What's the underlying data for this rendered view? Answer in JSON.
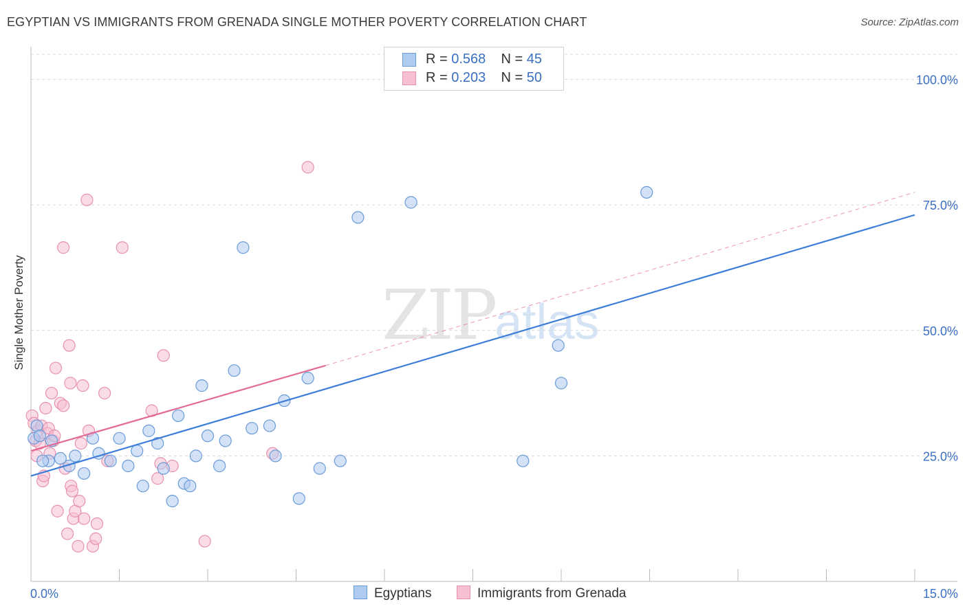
{
  "title": "EGYPTIAN VS IMMIGRANTS FROM GRENADA SINGLE MOTHER POVERTY CORRELATION CHART",
  "source": "Source: ZipAtlas.com",
  "watermark": {
    "zip": "ZIP",
    "atlas": "atlas"
  },
  "colors": {
    "blue": "#3b7dd8",
    "blue_fill": "#aecbf0",
    "blue_stroke": "#6a9bd8",
    "pink": "#e36a96",
    "pink_fill": "#f6bfd2",
    "pink_stroke": "#e890b0",
    "axis_text": "#3a6fc4",
    "grid": "#d9d9d9"
  },
  "legend": {
    "r_label": "R =",
    "n_label": "N =",
    "rows": [
      {
        "r": "0.568",
        "n": "45"
      },
      {
        "r": "0.203",
        "n": "50"
      }
    ]
  },
  "chart_data": {
    "type": "scatter",
    "title": "EGYPTIAN VS IMMIGRANTS FROM GRENADA SINGLE MOTHER POVERTY CORRELATION CHART",
    "xlabel": "",
    "ylabel": "Single Mother Poverty",
    "xlim": [
      0,
      15
    ],
    "ylim": [
      0,
      105
    ],
    "x_tick_labels": [
      "0.0%",
      "15.0%"
    ],
    "y_ticks": [
      25,
      50,
      75,
      100
    ],
    "y_tick_labels": [
      "25.0%",
      "50.0%",
      "75.0%",
      "100.0%"
    ],
    "grid": true,
    "series": [
      {
        "name": "Egyptians",
        "r": 0.568,
        "n": 45,
        "trend": {
          "x": [
            0,
            15
          ],
          "y": [
            21.0,
            73.0
          ],
          "style": "solid"
        },
        "points": [
          {
            "x": 0.05,
            "y": 28.5
          },
          {
            "x": 0.1,
            "y": 31.0
          },
          {
            "x": 0.15,
            "y": 29.0
          },
          {
            "x": 0.3,
            "y": 24.0
          },
          {
            "x": 0.35,
            "y": 28.0
          },
          {
            "x": 0.5,
            "y": 24.5
          },
          {
            "x": 0.65,
            "y": 23.0
          },
          {
            "x": 0.75,
            "y": 25.0
          },
          {
            "x": 0.9,
            "y": 21.5
          },
          {
            "x": 1.05,
            "y": 28.5
          },
          {
            "x": 1.15,
            "y": 25.5
          },
          {
            "x": 1.35,
            "y": 24.0
          },
          {
            "x": 1.5,
            "y": 28.5
          },
          {
            "x": 1.65,
            "y": 23.0
          },
          {
            "x": 1.8,
            "y": 26.0
          },
          {
            "x": 1.9,
            "y": 19.0
          },
          {
            "x": 2.0,
            "y": 30.0
          },
          {
            "x": 2.15,
            "y": 27.5
          },
          {
            "x": 2.25,
            "y": 22.5
          },
          {
            "x": 2.4,
            "y": 16.0
          },
          {
            "x": 2.5,
            "y": 33.0
          },
          {
            "x": 2.6,
            "y": 19.5
          },
          {
            "x": 2.7,
            "y": 19.0
          },
          {
            "x": 2.8,
            "y": 25.0
          },
          {
            "x": 2.9,
            "y": 39.0
          },
          {
            "x": 3.0,
            "y": 29.0
          },
          {
            "x": 3.2,
            "y": 23.0
          },
          {
            "x": 3.3,
            "y": 28.0
          },
          {
            "x": 3.45,
            "y": 42.0
          },
          {
            "x": 3.6,
            "y": 66.5
          },
          {
            "x": 3.75,
            "y": 30.5
          },
          {
            "x": 4.05,
            "y": 31.0
          },
          {
            "x": 4.15,
            "y": 25.0
          },
          {
            "x": 4.3,
            "y": 36.0
          },
          {
            "x": 4.55,
            "y": 16.5
          },
          {
            "x": 4.7,
            "y": 40.5
          },
          {
            "x": 4.9,
            "y": 22.5
          },
          {
            "x": 5.25,
            "y": 24.0
          },
          {
            "x": 5.55,
            "y": 72.5
          },
          {
            "x": 6.45,
            "y": 75.5
          },
          {
            "x": 8.35,
            "y": 24.0
          },
          {
            "x": 8.95,
            "y": 47.0
          },
          {
            "x": 9.0,
            "y": 39.5
          },
          {
            "x": 10.45,
            "y": 77.5
          },
          {
            "x": 0.2,
            "y": 24.0
          }
        ]
      },
      {
        "name": "Immigrants from Grenada",
        "r": 0.203,
        "n": 50,
        "trend": {
          "x": [
            0,
            5.0
          ],
          "y": [
            26.0,
            43.0
          ],
          "style": "solid",
          "extended": {
            "x": [
              5.0,
              15
            ],
            "y": [
              43.0,
              77.5
            ],
            "style": "dashed"
          }
        },
        "points": [
          {
            "x": 0.02,
            "y": 33.0
          },
          {
            "x": 0.05,
            "y": 31.5
          },
          {
            "x": 0.08,
            "y": 28.0
          },
          {
            "x": 0.1,
            "y": 25.0
          },
          {
            "x": 0.12,
            "y": 30.0
          },
          {
            "x": 0.15,
            "y": 27.5
          },
          {
            "x": 0.18,
            "y": 31.0
          },
          {
            "x": 0.2,
            "y": 20.0
          },
          {
            "x": 0.22,
            "y": 21.0
          },
          {
            "x": 0.25,
            "y": 34.5
          },
          {
            "x": 0.28,
            "y": 29.5
          },
          {
            "x": 0.3,
            "y": 30.5
          },
          {
            "x": 0.32,
            "y": 25.5
          },
          {
            "x": 0.35,
            "y": 37.5
          },
          {
            "x": 0.38,
            "y": 28.0
          },
          {
            "x": 0.4,
            "y": 29.0
          },
          {
            "x": 0.42,
            "y": 42.5
          },
          {
            "x": 0.45,
            "y": 14.0
          },
          {
            "x": 0.5,
            "y": 35.5
          },
          {
            "x": 0.55,
            "y": 35.0
          },
          {
            "x": 0.58,
            "y": 22.5
          },
          {
            "x": 0.62,
            "y": 9.5
          },
          {
            "x": 0.65,
            "y": 47.0
          },
          {
            "x": 0.67,
            "y": 39.5
          },
          {
            "x": 0.68,
            "y": 19.0
          },
          {
            "x": 0.7,
            "y": 18.0
          },
          {
            "x": 0.72,
            "y": 12.5
          },
          {
            "x": 0.75,
            "y": 14.0
          },
          {
            "x": 0.8,
            "y": 7.0
          },
          {
            "x": 0.82,
            "y": 16.0
          },
          {
            "x": 0.85,
            "y": 27.5
          },
          {
            "x": 0.88,
            "y": 39.0
          },
          {
            "x": 0.9,
            "y": 12.5
          },
          {
            "x": 0.95,
            "y": 76.0
          },
          {
            "x": 0.98,
            "y": 30.0
          },
          {
            "x": 1.05,
            "y": 7.0
          },
          {
            "x": 1.1,
            "y": 8.5
          },
          {
            "x": 1.12,
            "y": 11.5
          },
          {
            "x": 1.25,
            "y": 37.5
          },
          {
            "x": 1.3,
            "y": 24.0
          },
          {
            "x": 1.55,
            "y": 66.5
          },
          {
            "x": 2.05,
            "y": 34.0
          },
          {
            "x": 2.15,
            "y": 20.5
          },
          {
            "x": 2.2,
            "y": 23.5
          },
          {
            "x": 2.25,
            "y": 45.0
          },
          {
            "x": 2.4,
            "y": 23.0
          },
          {
            "x": 2.95,
            "y": 8.0
          },
          {
            "x": 4.1,
            "y": 25.5
          },
          {
            "x": 4.7,
            "y": 82.5
          },
          {
            "x": 0.55,
            "y": 66.5
          }
        ]
      }
    ]
  }
}
